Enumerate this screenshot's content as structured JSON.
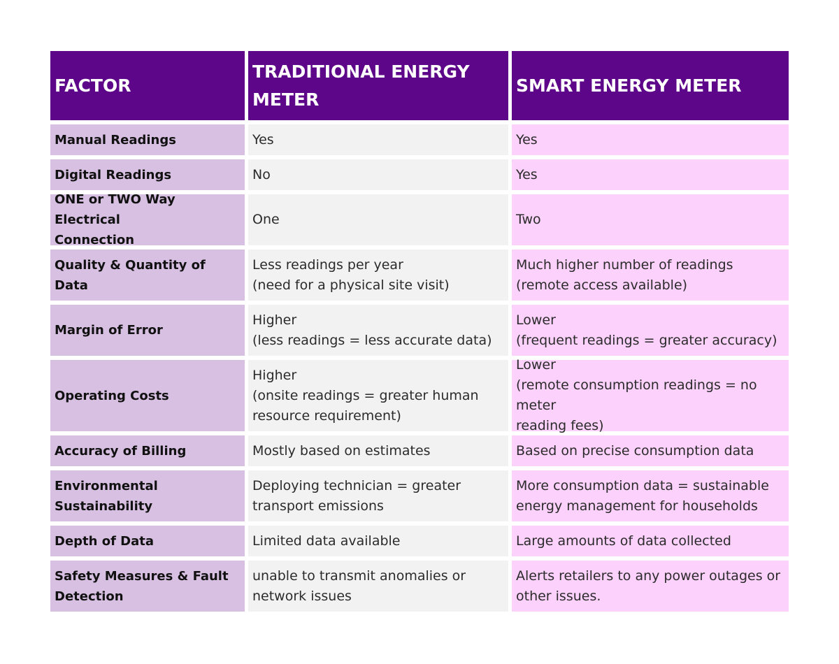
{
  "header": {
    "factor": "FACTOR",
    "traditional": "TRADITIONAL ENERGY METER",
    "smart": "SMART ENERGY METER"
  },
  "rows": [
    {
      "factor": "Manual Readings",
      "traditional": "Yes",
      "smart": "Yes"
    },
    {
      "factor": "Digital Readings",
      "traditional": "No",
      "smart": "Yes"
    },
    {
      "factor": "ONE or TWO Way Electrical\nConnection",
      "traditional": "One",
      "smart": "Two"
    },
    {
      "factor": "Quality & Quantity of Data",
      "traditional": "Less readings per year\n(need for a physical site visit)",
      "smart": "Much higher number of readings\n(remote access available)"
    },
    {
      "factor": "Margin of Error",
      "traditional": "Higher\n(less readings = less accurate data)",
      "smart": "Lower\n(frequent readings = greater accuracy)"
    },
    {
      "factor": "Operating Costs",
      "traditional": "Higher\n(onsite readings = greater human\nresource requirement)",
      "smart": "Lower\n(remote consumption readings = no meter\nreading fees)"
    },
    {
      "factor": "Accuracy of Billing",
      "traditional": "Mostly based on estimates",
      "smart": "Based on precise consumption data"
    },
    {
      "factor": "Environmental\nSustainability",
      "traditional": "Deploying technician = greater\ntransport emissions",
      "smart": "More consumption data = sustainable\nenergy management for households"
    },
    {
      "factor": "Depth of Data",
      "traditional": "Limited data available",
      "smart": "Large amounts of data collected"
    },
    {
      "factor": "Safety Measures & Fault\nDetection",
      "traditional": "unable to transmit anomalies or\nnetwork issues",
      "smart": "Alerts retailers to any power outages or\nother issues."
    }
  ]
}
